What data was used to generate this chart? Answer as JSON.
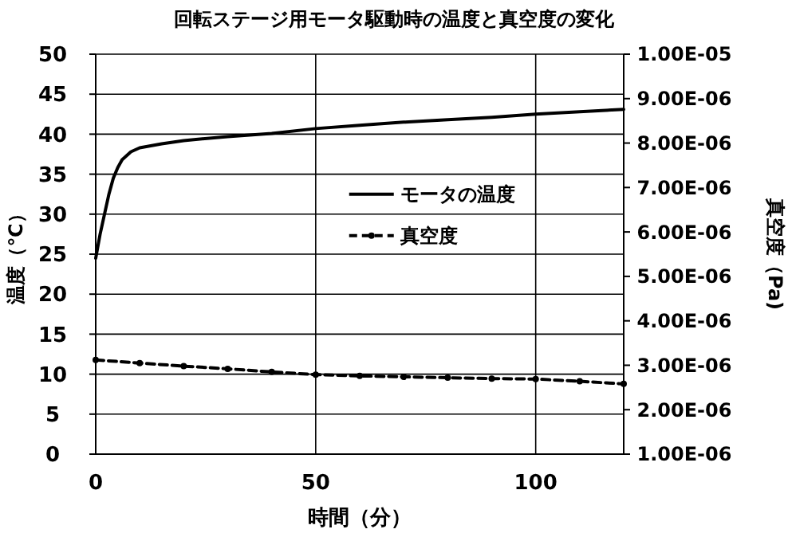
{
  "chart_data": {
    "type": "line",
    "title": "回転ステージ用モータ駆動時の温度と真空度の変化",
    "xlabel": "時間（分）",
    "ylabel": "温度（℃）",
    "y2label": "真空度（Pa)",
    "xlim": [
      0,
      120
    ],
    "xticks": [
      0,
      50,
      100
    ],
    "ylim": [
      0,
      50
    ],
    "yticks": [
      0,
      5,
      10,
      15,
      20,
      25,
      30,
      35,
      40,
      45,
      50
    ],
    "y2lim": [
      1e-06,
      1e-05
    ],
    "y2ticks": [
      {
        "value": 1e-06,
        "label": "1.00E-06"
      },
      {
        "value": 2e-06,
        "label": "2.00E-06"
      },
      {
        "value": 3e-06,
        "label": "3.00E-06"
      },
      {
        "value": 4e-06,
        "label": "4.00E-06"
      },
      {
        "value": 5e-06,
        "label": "5.00E-06"
      },
      {
        "value": 6e-06,
        "label": "6.00E-06"
      },
      {
        "value": 7e-06,
        "label": "7.00E-06"
      },
      {
        "value": 8e-06,
        "label": "8.00E-06"
      },
      {
        "value": 9e-06,
        "label": "9.00E-06"
      },
      {
        "value": 1e-05,
        "label": "1.00E-05"
      }
    ],
    "grid": true,
    "legend": "right",
    "series": [
      {
        "name": "モータの温度",
        "color": "#000000",
        "line_style": "solid",
        "marker": "none",
        "x": [
          0,
          1,
          2,
          3,
          4,
          5,
          6,
          8,
          10,
          15,
          20,
          30,
          40,
          50,
          60,
          70,
          80,
          90,
          100,
          110,
          120
        ],
        "values": [
          24.5,
          27.5,
          30,
          32.5,
          34.5,
          35.8,
          36.8,
          37.8,
          38.3,
          38.8,
          39.2,
          39.7,
          40.1,
          40.7,
          41.1,
          41.5,
          41.8,
          42.1,
          42.5,
          42.8,
          43.1
        ]
      },
      {
        "name": "真空度",
        "color": "#000000",
        "axis": "y2",
        "line_style": "dashed",
        "marker": "circle",
        "x": [
          0,
          10,
          20,
          30,
          40,
          50,
          60,
          70,
          80,
          90,
          100,
          110,
          120
        ],
        "values": [
          3.12e-06,
          3.05e-06,
          2.98e-06,
          2.92e-06,
          2.85e-06,
          2.79e-06,
          2.76e-06,
          2.74e-06,
          2.72e-06,
          2.7e-06,
          2.69e-06,
          2.64e-06,
          2.58e-06
        ]
      }
    ]
  }
}
